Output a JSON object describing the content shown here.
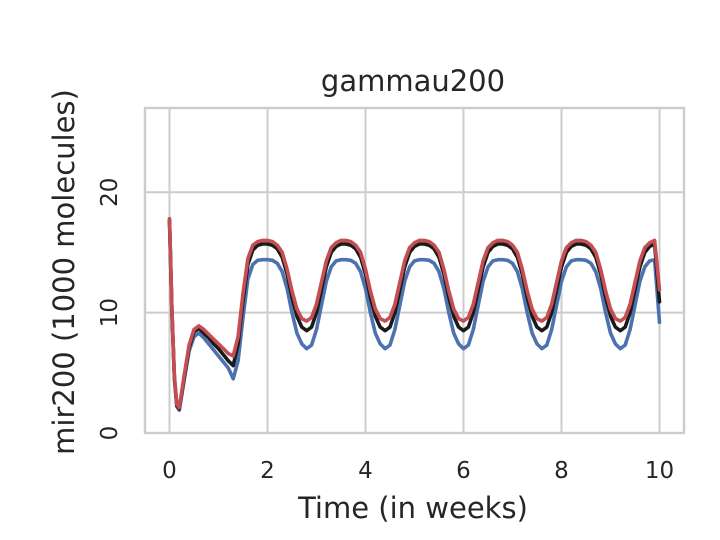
{
  "chart_data": {
    "type": "line",
    "title": "gammau200",
    "xlabel": "Time (in weeks)",
    "ylabel": "mir200 (1000 molecules)",
    "xlim": [
      -0.5,
      10.5
    ],
    "ylim": [
      0,
      27
    ],
    "xticks": [
      0,
      2,
      4,
      6,
      8,
      10
    ],
    "yticks": [
      0,
      10,
      20
    ],
    "xtick_labels": [
      "0",
      "2",
      "4",
      "6",
      "8",
      "10"
    ],
    "ytick_labels": [
      "0",
      "10",
      "20"
    ],
    "grid": true,
    "legend": "none",
    "series": [
      {
        "color": "#4c72b0",
        "x": [
          0,
          0.05,
          0.1,
          0.15,
          0.2,
          0.3,
          0.4,
          0.5,
          0.6,
          0.7,
          0.8,
          0.9,
          1.0,
          1.1,
          1.2,
          1.3,
          1.4,
          1.5,
          1.6,
          1.7,
          1.8,
          1.9,
          2.0,
          2.1,
          2.2,
          2.3,
          2.4,
          2.5,
          2.6,
          2.7,
          2.8,
          2.9,
          3.0,
          3.1,
          3.2,
          3.3,
          3.4,
          3.5,
          3.6,
          3.7,
          3.8,
          3.9,
          4.0,
          4.1,
          4.2,
          4.3,
          4.4,
          4.5,
          4.6,
          4.7,
          4.8,
          4.9,
          5.0,
          5.1,
          5.2,
          5.3,
          5.4,
          5.5,
          5.6,
          5.7,
          5.8,
          5.9,
          6.0,
          6.1,
          6.2,
          6.3,
          6.4,
          6.5,
          6.6,
          6.7,
          6.8,
          6.9,
          7.0,
          7.1,
          7.2,
          7.3,
          7.4,
          7.5,
          7.6,
          7.7,
          7.8,
          7.9,
          8.0,
          8.1,
          8.2,
          8.3,
          8.4,
          8.5,
          8.6,
          8.7,
          8.8,
          8.9,
          9.0,
          9.1,
          9.2,
          9.3,
          9.4,
          9.5,
          9.6,
          9.7,
          9.8,
          9.9,
          10.0
        ],
        "y": [
          17.6,
          10.0,
          4.5,
          2.2,
          1.9,
          4.4,
          6.8,
          8.0,
          8.3,
          7.9,
          7.4,
          6.9,
          6.4,
          5.9,
          5.4,
          4.5,
          6.0,
          9.6,
          12.8,
          14.0,
          14.35,
          14.4,
          14.4,
          14.35,
          14.1,
          13.4,
          12.0,
          10.0,
          8.3,
          7.4,
          7.0,
          7.3,
          8.6,
          10.6,
          12.6,
          13.8,
          14.3,
          14.4,
          14.4,
          14.35,
          14.1,
          13.4,
          12.0,
          10.0,
          8.3,
          7.4,
          7.0,
          7.3,
          8.6,
          10.6,
          12.6,
          13.8,
          14.3,
          14.4,
          14.4,
          14.35,
          14.1,
          13.4,
          12.0,
          10.0,
          8.3,
          7.4,
          7.0,
          7.3,
          8.6,
          10.6,
          12.6,
          13.8,
          14.3,
          14.4,
          14.4,
          14.35,
          14.1,
          13.4,
          12.0,
          10.0,
          8.3,
          7.4,
          7.0,
          7.3,
          8.6,
          10.6,
          12.6,
          13.8,
          14.3,
          14.4,
          14.4,
          14.35,
          14.1,
          13.4,
          12.0,
          10.0,
          8.3,
          7.4,
          7.0,
          7.3,
          8.6,
          10.6,
          12.6,
          13.8,
          14.3,
          14.4,
          9.2
        ]
      },
      {
        "color": "#1a1a1a",
        "x": [
          0,
          0.05,
          0.1,
          0.15,
          0.2,
          0.3,
          0.4,
          0.5,
          0.6,
          0.7,
          0.8,
          0.9,
          1.0,
          1.1,
          1.2,
          1.3,
          1.4,
          1.5,
          1.6,
          1.7,
          1.8,
          1.9,
          2.0,
          2.1,
          2.2,
          2.3,
          2.4,
          2.5,
          2.6,
          2.7,
          2.8,
          2.9,
          3.0,
          3.1,
          3.2,
          3.3,
          3.4,
          3.5,
          3.6,
          3.7,
          3.8,
          3.9,
          4.0,
          4.1,
          4.2,
          4.3,
          4.4,
          4.5,
          4.6,
          4.7,
          4.8,
          4.9,
          5.0,
          5.1,
          5.2,
          5.3,
          5.4,
          5.5,
          5.6,
          5.7,
          5.8,
          5.9,
          6.0,
          6.1,
          6.2,
          6.3,
          6.4,
          6.5,
          6.6,
          6.7,
          6.8,
          6.9,
          7.0,
          7.1,
          7.2,
          7.3,
          7.4,
          7.5,
          7.6,
          7.7,
          7.8,
          7.9,
          8.0,
          8.1,
          8.2,
          8.3,
          8.4,
          8.5,
          8.6,
          8.7,
          8.8,
          8.9,
          9.0,
          9.1,
          9.2,
          9.3,
          9.4,
          9.5,
          9.6,
          9.7,
          9.8,
          9.9,
          10.0
        ],
        "y": [
          17.7,
          10.2,
          4.6,
          2.3,
          2.0,
          4.6,
          7.1,
          8.4,
          8.7,
          8.3,
          7.9,
          7.4,
          7.0,
          6.5,
          6.0,
          5.6,
          7.4,
          11.0,
          14.0,
          15.2,
          15.6,
          15.7,
          15.7,
          15.6,
          15.3,
          14.6,
          13.2,
          11.3,
          9.7,
          8.8,
          8.5,
          8.8,
          10.0,
          11.9,
          13.8,
          15.0,
          15.5,
          15.7,
          15.7,
          15.6,
          15.3,
          14.6,
          13.2,
          11.3,
          9.7,
          8.8,
          8.5,
          8.8,
          10.0,
          11.9,
          13.8,
          15.0,
          15.5,
          15.7,
          15.7,
          15.6,
          15.3,
          14.6,
          13.2,
          11.3,
          9.7,
          8.8,
          8.5,
          8.8,
          10.0,
          11.9,
          13.8,
          15.0,
          15.5,
          15.7,
          15.7,
          15.6,
          15.3,
          14.6,
          13.2,
          11.3,
          9.7,
          8.8,
          8.5,
          8.8,
          10.0,
          11.9,
          13.8,
          15.0,
          15.5,
          15.7,
          15.7,
          15.6,
          15.3,
          14.6,
          13.2,
          11.3,
          9.7,
          8.8,
          8.5,
          8.8,
          10.0,
          11.9,
          13.8,
          15.0,
          15.5,
          15.7,
          10.9
        ]
      },
      {
        "color": "#c44e52",
        "x": [
          0,
          0.05,
          0.1,
          0.15,
          0.2,
          0.3,
          0.4,
          0.5,
          0.6,
          0.7,
          0.8,
          0.9,
          1.0,
          1.1,
          1.2,
          1.3,
          1.4,
          1.5,
          1.6,
          1.7,
          1.8,
          1.9,
          2.0,
          2.1,
          2.2,
          2.3,
          2.4,
          2.5,
          2.6,
          2.7,
          2.8,
          2.9,
          3.0,
          3.1,
          3.2,
          3.3,
          3.4,
          3.5,
          3.6,
          3.7,
          3.8,
          3.9,
          4.0,
          4.1,
          4.2,
          4.3,
          4.4,
          4.5,
          4.6,
          4.7,
          4.8,
          4.9,
          5.0,
          5.1,
          5.2,
          5.3,
          5.4,
          5.5,
          5.6,
          5.7,
          5.8,
          5.9,
          6.0,
          6.1,
          6.2,
          6.3,
          6.4,
          6.5,
          6.6,
          6.7,
          6.8,
          6.9,
          7.0,
          7.1,
          7.2,
          7.3,
          7.4,
          7.5,
          7.6,
          7.7,
          7.8,
          7.9,
          8.0,
          8.1,
          8.2,
          8.3,
          8.4,
          8.5,
          8.6,
          8.7,
          8.8,
          8.9,
          9.0,
          9.1,
          9.2,
          9.3,
          9.4,
          9.5,
          9.6,
          9.7,
          9.8,
          9.9,
          10.0
        ],
        "y": [
          17.8,
          10.3,
          4.7,
          2.4,
          2.1,
          4.8,
          7.3,
          8.6,
          8.9,
          8.6,
          8.2,
          7.8,
          7.4,
          7.0,
          6.6,
          6.4,
          8.0,
          11.6,
          14.5,
          15.6,
          15.9,
          16.0,
          16.0,
          15.9,
          15.6,
          15.0,
          13.6,
          11.8,
          10.3,
          9.5,
          9.3,
          9.6,
          10.7,
          12.5,
          14.3,
          15.4,
          15.8,
          16.0,
          16.0,
          15.9,
          15.6,
          15.0,
          13.6,
          11.8,
          10.3,
          9.5,
          9.3,
          9.6,
          10.7,
          12.5,
          14.3,
          15.4,
          15.8,
          16.0,
          16.0,
          15.9,
          15.6,
          15.0,
          13.6,
          11.8,
          10.3,
          9.5,
          9.3,
          9.6,
          10.7,
          12.5,
          14.3,
          15.4,
          15.8,
          16.0,
          16.0,
          15.9,
          15.6,
          15.0,
          13.6,
          11.8,
          10.3,
          9.5,
          9.3,
          9.6,
          10.7,
          12.5,
          14.3,
          15.4,
          15.8,
          16.0,
          16.0,
          15.9,
          15.6,
          15.0,
          13.6,
          11.8,
          10.3,
          9.5,
          9.3,
          9.6,
          10.7,
          12.5,
          14.3,
          15.4,
          15.8,
          16.0,
          11.9
        ]
      }
    ]
  }
}
